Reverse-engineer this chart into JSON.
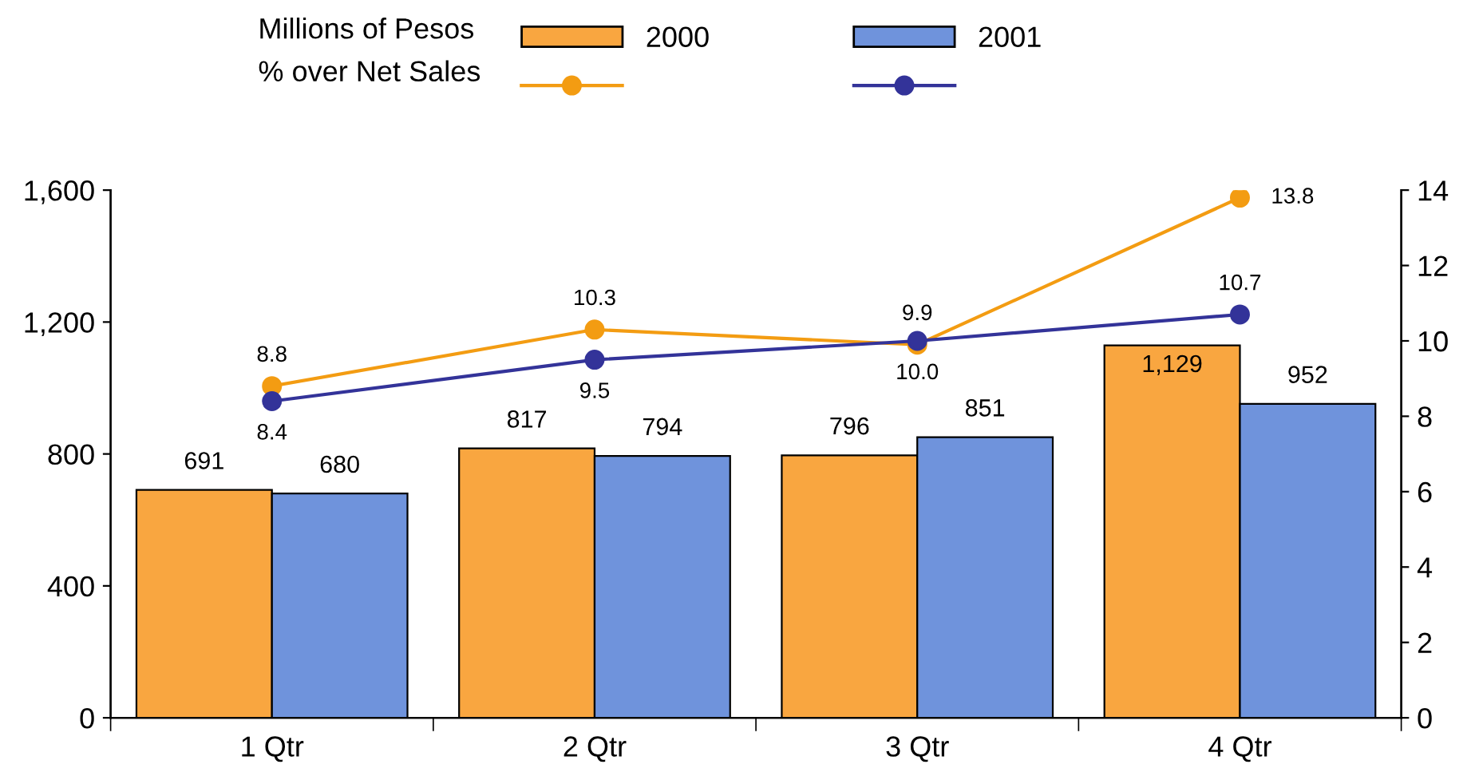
{
  "chart_data": {
    "type": "bar",
    "categories": [
      "1 Qtr",
      "2 Qtr",
      "3 Qtr",
      "4 Qtr"
    ],
    "series": [
      {
        "name": "2000",
        "color": "#f9a640",
        "values": [
          691,
          817,
          796,
          1129
        ],
        "value_labels": [
          "691",
          "817",
          "796",
          "1,129"
        ]
      },
      {
        "name": "2001",
        "color": "#6f93dc",
        "values": [
          680,
          794,
          851,
          952
        ],
        "value_labels": [
          "680",
          "794",
          "851",
          "952"
        ]
      },
      {
        "type": "line",
        "axis": "y2",
        "color": "#f39c12",
        "values": [
          8.8,
          10.3,
          9.9,
          13.8
        ],
        "value_labels": [
          "8.8",
          "10.3",
          "9.9",
          "13.8"
        ]
      },
      {
        "type": "line",
        "axis": "y2",
        "color": "#333399",
        "values": [
          8.4,
          9.5,
          10.0,
          10.7
        ],
        "value_labels": [
          "8.4",
          "9.5",
          "10.0",
          "10.7"
        ]
      }
    ],
    "annotations": [
      "Millions of Pesos",
      "% over Net Sales"
    ],
    "ylim": [
      0,
      1600
    ],
    "yticks": [
      0,
      400,
      800,
      {
        "value": 1200,
        "label": "1,200"
      },
      {
        "value": 1600,
        "label": "1,600"
      }
    ],
    "y2lim": [
      0,
      14
    ],
    "y2ticks": [
      0,
      2,
      4,
      6,
      8,
      10,
      12,
      14
    ],
    "marker": "circle",
    "line_style": "solid",
    "grid": false,
    "legend": "top"
  }
}
